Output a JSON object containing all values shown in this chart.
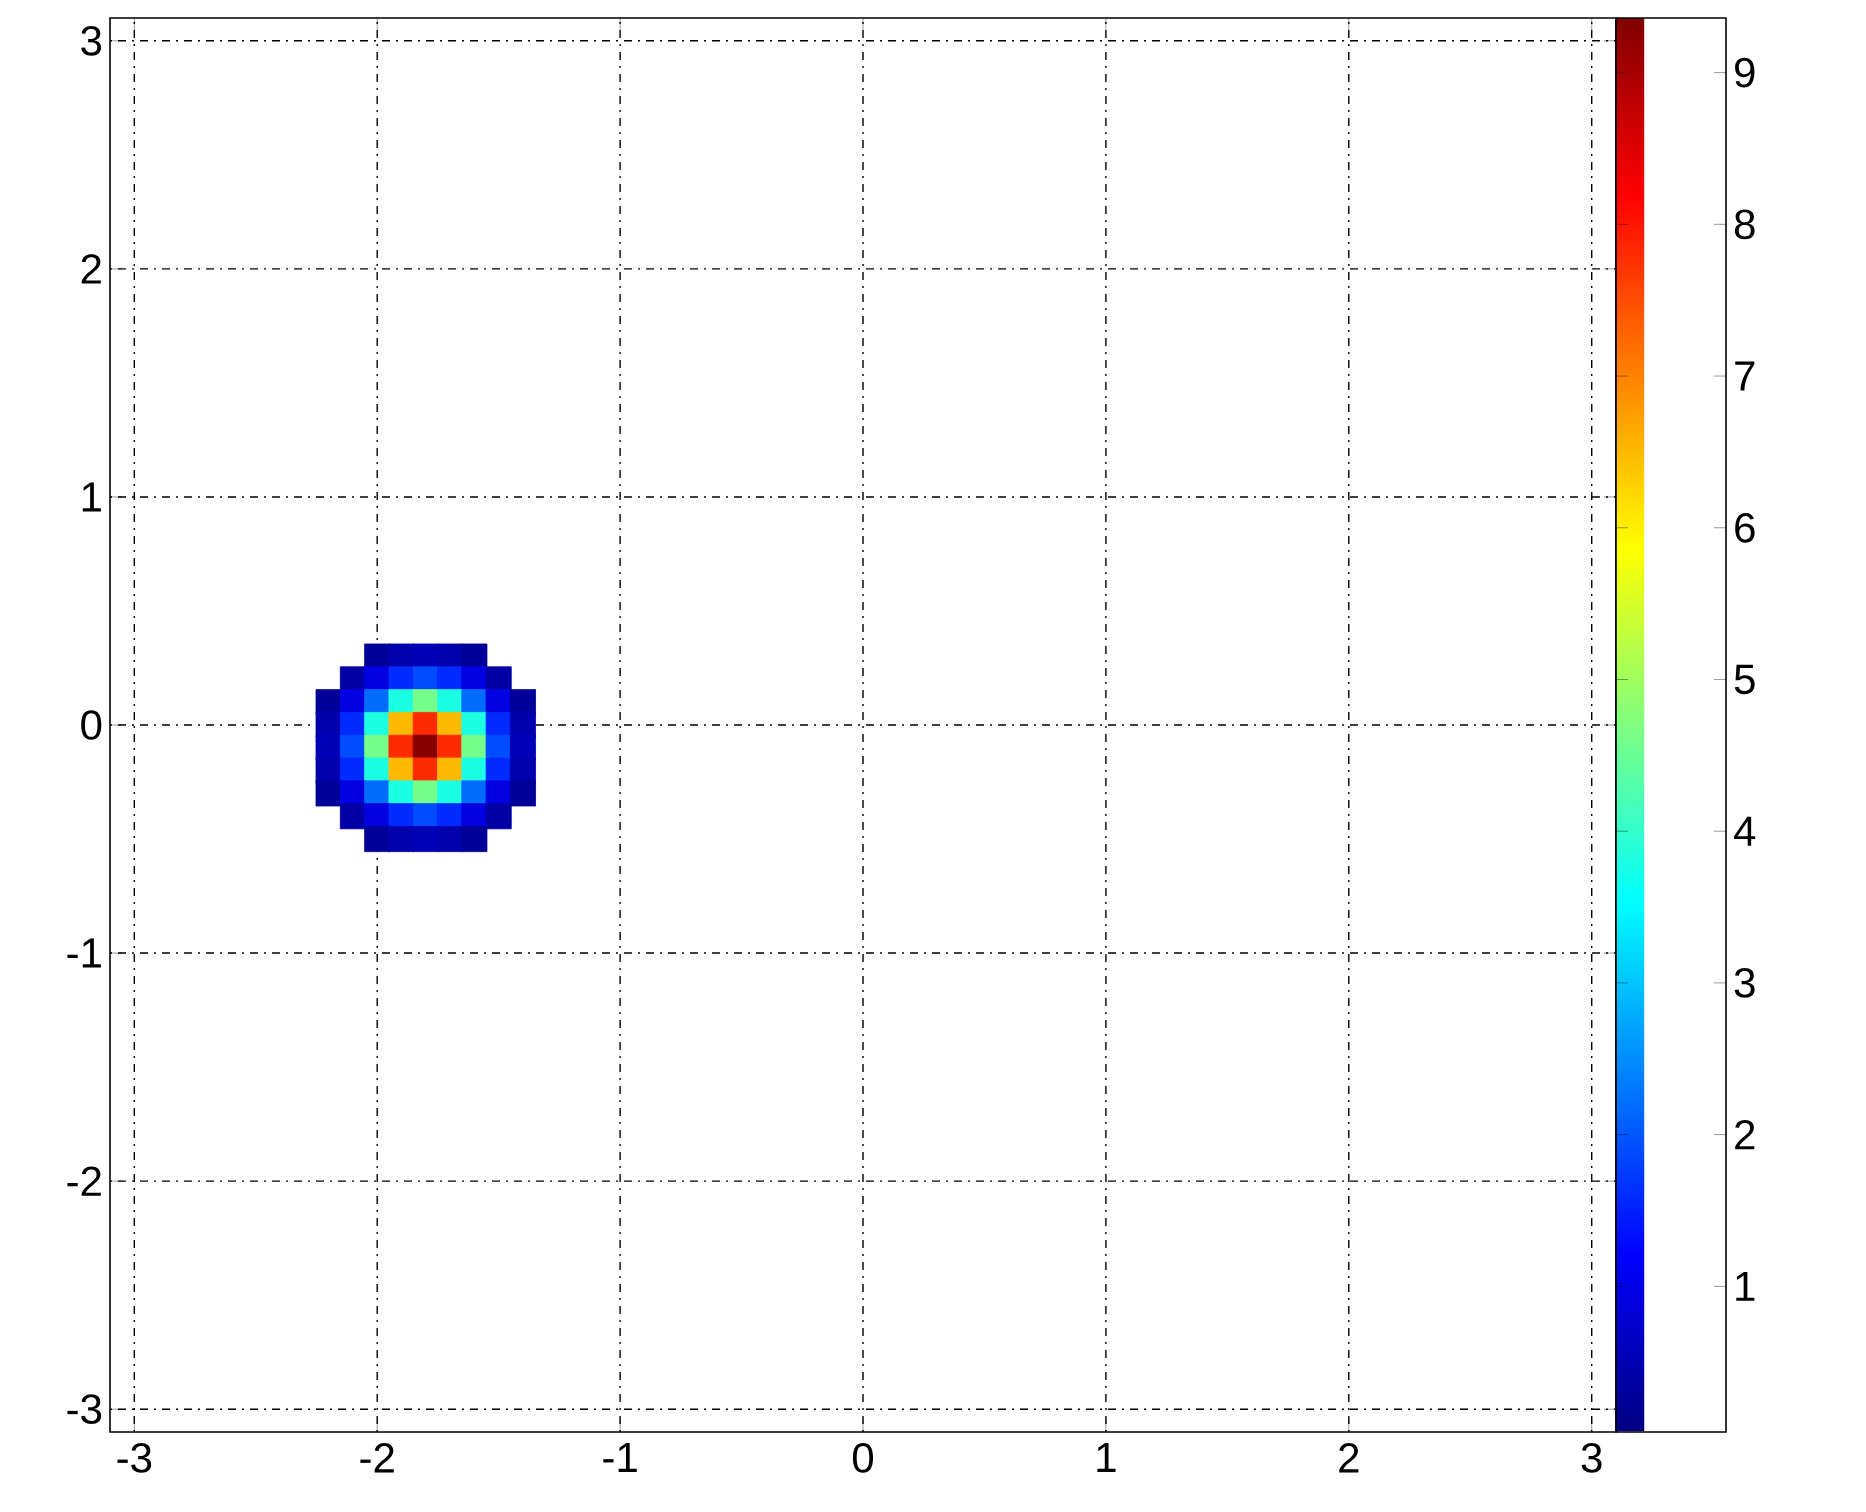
{
  "chart_data": {
    "type": "scatter",
    "marker": "square",
    "grid": true,
    "x": [
      -2.0,
      -1.9,
      -1.8,
      -1.7,
      -1.6,
      -2.1,
      -2.0,
      -1.9,
      -1.8,
      -1.7,
      -1.6,
      -1.5,
      -2.2,
      -2.1,
      -2.0,
      -1.9,
      -1.8,
      -1.7,
      -1.6,
      -1.5,
      -1.4,
      -2.2,
      -2.1,
      -2.0,
      -1.9,
      -1.8,
      -1.7,
      -1.6,
      -1.5,
      -1.4,
      -2.2,
      -2.1,
      -2.0,
      -1.9,
      -1.8,
      -1.7,
      -1.6,
      -1.5,
      -1.4,
      -2.2,
      -2.1,
      -2.0,
      -1.9,
      -1.8,
      -1.7,
      -1.6,
      -1.5,
      -1.4,
      -2.2,
      -2.1,
      -2.0,
      -1.9,
      -1.8,
      -1.7,
      -1.6,
      -1.5,
      -1.4,
      -2.1,
      -2.0,
      -1.9,
      -1.8,
      -1.7,
      -1.6,
      -1.5,
      -2.0,
      -1.9,
      -1.8,
      -1.7,
      -1.6
    ],
    "values": [
      0.3,
      0.3,
      0.3,
      0.3,
      0.3,
      0.2,
      0.2,
      0.2,
      0.2,
      0.2,
      0.2,
      0.2,
      0.1,
      0.1,
      0.1,
      0.1,
      0.1,
      0.1,
      0.1,
      0.1,
      0.1,
      0,
      0,
      0,
      0,
      0,
      0,
      0,
      0,
      0,
      -0.1,
      -0.1,
      -0.1,
      -0.1,
      -0.1,
      -0.1,
      -0.1,
      -0.1,
      -0.1,
      -0.2,
      -0.2,
      -0.2,
      -0.2,
      -0.2,
      -0.2,
      -0.2,
      -0.2,
      -0.2,
      -0.3,
      -0.3,
      -0.3,
      -0.3,
      -0.3,
      -0.3,
      -0.3,
      -0.3,
      -0.3,
      -0.4,
      -0.4,
      -0.4,
      -0.4,
      -0.4,
      -0.4,
      -0.4,
      -0.5,
      -0.5,
      -0.5,
      -0.5,
      -0.5
    ],
    "cvalues": [
      0.27,
      0.45,
      0.54,
      0.45,
      0.27,
      0.38,
      0.92,
      1.6,
      1.9,
      1.6,
      0.92,
      0.38,
      0.27,
      0.92,
      2.2,
      3.8,
      4.6,
      3.8,
      2.2,
      0.92,
      0.27,
      0.45,
      1.6,
      3.8,
      6.5,
      7.8,
      6.5,
      3.8,
      1.6,
      0.45,
      0.54,
      1.9,
      4.6,
      7.8,
      9.3,
      7.8,
      4.6,
      1.9,
      0.54,
      0.45,
      1.6,
      3.8,
      6.5,
      7.8,
      6.5,
      3.8,
      1.6,
      0.45,
      0.27,
      0.92,
      2.2,
      3.8,
      4.6,
      3.8,
      2.2,
      0.92,
      0.27,
      0.38,
      0.92,
      1.6,
      1.9,
      1.6,
      0.92,
      0.38,
      0.27,
      0.45,
      0.54,
      0.45,
      0.27
    ],
    "xlim": [
      -3.1,
      3.1
    ],
    "ylim": [
      -3.1,
      3.1
    ],
    "xticks": [
      -3,
      -2,
      -1,
      0,
      1,
      2,
      3
    ],
    "yticks": [
      -3,
      -2,
      -1,
      0,
      1,
      2,
      3
    ],
    "clim": [
      0.04,
      9.36
    ],
    "cticks": [
      1,
      2,
      3,
      4,
      5,
      6,
      7,
      8,
      9
    ]
  }
}
